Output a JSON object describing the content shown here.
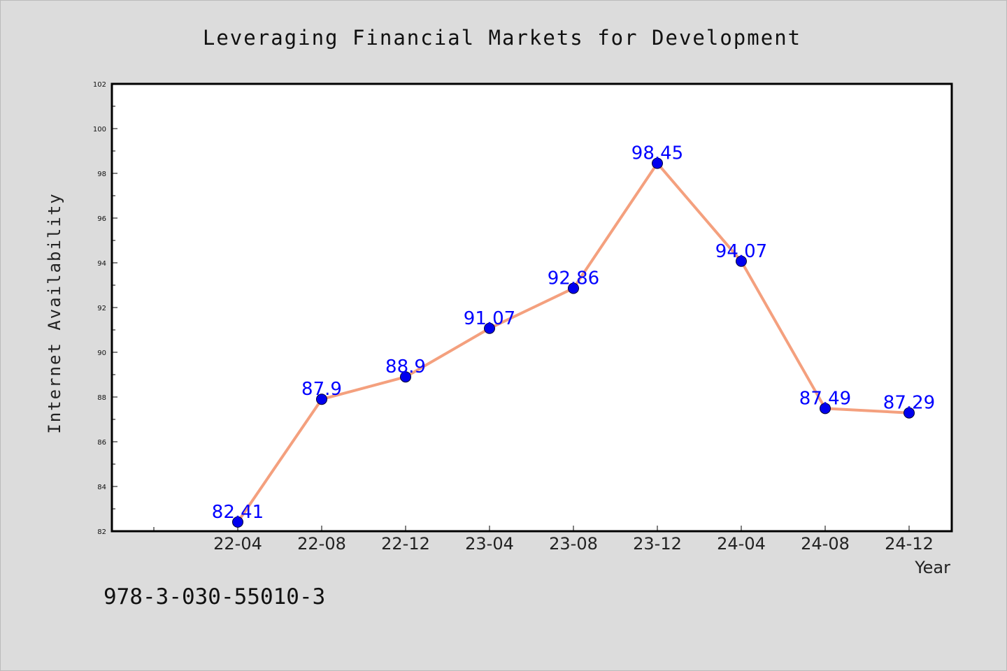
{
  "chart_data": {
    "type": "line",
    "title": "Leveraging Financial Markets for Development",
    "xlabel": "Year",
    "ylabel": "Internet Availability",
    "categories": [
      "22-04",
      "22-08",
      "22-12",
      "23-04",
      "23-08",
      "23-12",
      "24-04",
      "24-08",
      "24-12"
    ],
    "series": [
      {
        "values": [
          82.41,
          87.9,
          88.9,
          91.07,
          92.86,
          98.45,
          94.07,
          87.49,
          87.29
        ],
        "labels": [
          "82.41",
          "87.9",
          "88.9",
          "91.07",
          "92.86",
          "98.45",
          "94.07",
          "87.49",
          "87.29"
        ],
        "line_color": "#f4a07e",
        "marker_color": "#0000ee"
      }
    ],
    "ylim": [
      82,
      102
    ],
    "yticks": [
      82,
      84,
      86,
      88,
      90,
      92,
      94,
      96,
      98,
      100,
      102
    ],
    "ytick_labels": [
      "82",
      "84",
      "86",
      "88",
      "90",
      "92",
      "94",
      "96",
      "98",
      "100",
      "102"
    ],
    "grid": false,
    "label_color": "#0000ff"
  },
  "footer": {
    "isbn": "978-3-030-55010-3"
  }
}
